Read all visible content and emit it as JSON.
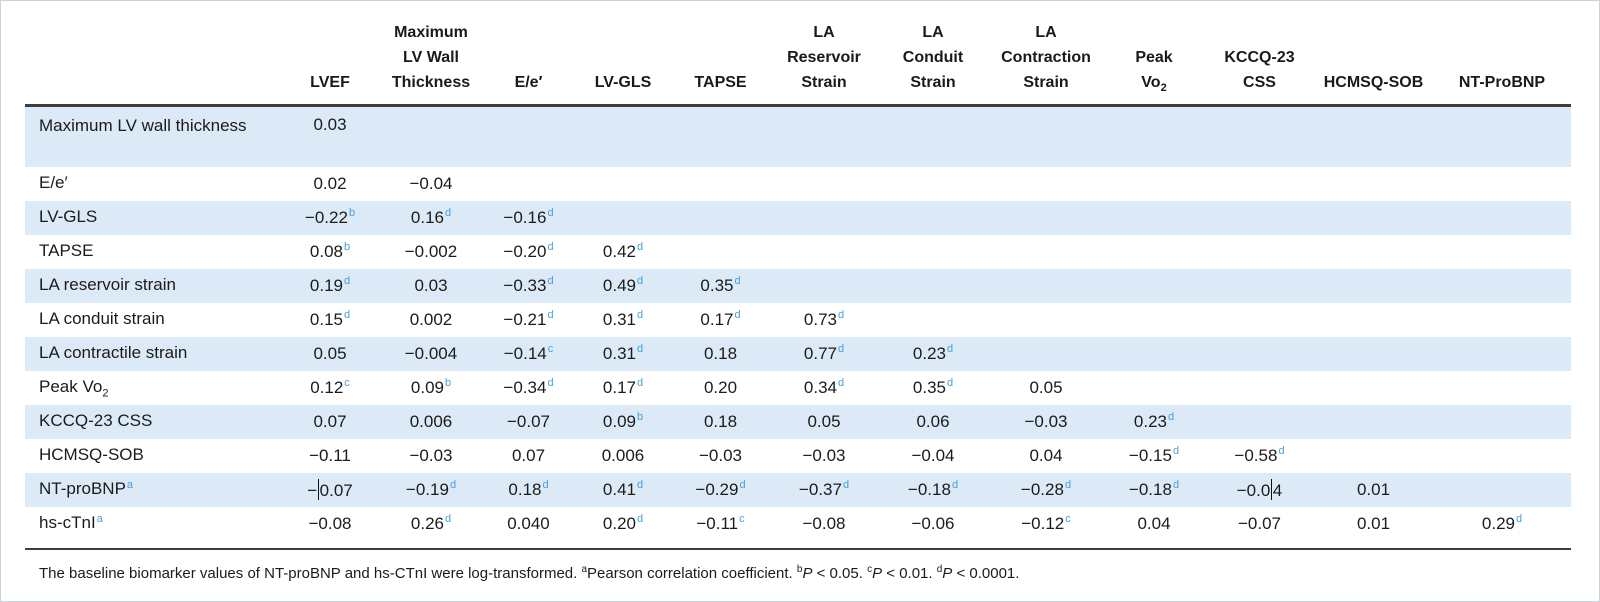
{
  "colors": {
    "row_stripe": "#dce9f7",
    "superscript_blue": "#4aa0da",
    "text": "#1b1b1b",
    "rule_dark": "#3d3d3d",
    "outer_border": "#cdd3dc"
  },
  "table": {
    "corner_label": "",
    "columns": [
      "LVEF",
      "Maximum\nLV Wall\nThickness",
      "E/e′",
      "LV-GLS",
      "TAPSE",
      "LA\nReservoir\nStrain",
      "LA\nConduit\nStrain",
      "LA\nContraction\nStrain",
      "Peak\nVo_2",
      "KCCQ-23\nCSS",
      "HCMSQ-SOB",
      "NT-ProBNP"
    ],
    "rows": [
      {
        "label": "Maximum LV wall thickness",
        "values": [
          "0.03",
          "",
          "",
          "",
          "",
          "",
          "",
          "",
          "",
          "",
          "",
          ""
        ]
      },
      {
        "label": "E/e′",
        "values": [
          "0.02",
          "−0.04",
          "",
          "",
          "",
          "",
          "",
          "",
          "",
          "",
          "",
          ""
        ]
      },
      {
        "label": "LV-GLS",
        "values": [
          "−0.22^b",
          "0.16^d",
          "−0.16^d",
          "",
          "",
          "",
          "",
          "",
          "",
          "",
          "",
          ""
        ]
      },
      {
        "label": "TAPSE",
        "values": [
          "0.08^b",
          "−0.002",
          "−0.20^d",
          "0.42^d",
          "",
          "",
          "",
          "",
          "",
          "",
          "",
          ""
        ]
      },
      {
        "label": "LA reservoir strain",
        "values": [
          "0.19^d",
          "0.03",
          "−0.33^d",
          "0.49^d",
          "0.35^d",
          "",
          "",
          "",
          "",
          "",
          "",
          ""
        ]
      },
      {
        "label": "LA conduit strain",
        "values": [
          "0.15^d",
          "0.002",
          "−0.21^d",
          "0.31^d",
          "0.17^d",
          "0.73^d",
          "",
          "",
          "",
          "",
          "",
          ""
        ]
      },
      {
        "label": "LA contractile strain",
        "values": [
          "0.05",
          "−0.004",
          "−0.14^c",
          "0.31^d",
          "0.18",
          "0.77^d",
          "0.23^d",
          "",
          "",
          "",
          "",
          ""
        ]
      },
      {
        "label": "Peak Vo_2",
        "values": [
          "0.12^c",
          "0.09^b",
          "−0.34^d",
          "0.17^d",
          "0.20",
          "0.34^d",
          "0.35^d",
          "0.05",
          "",
          "",
          "",
          ""
        ]
      },
      {
        "label": "KCCQ-23 CSS",
        "values": [
          "0.07",
          "0.006",
          "−0.07",
          "0.09^b",
          "0.18",
          "0.05",
          "0.06",
          "−0.03",
          "0.23^d",
          "",
          "",
          ""
        ]
      },
      {
        "label": "HCMSQ-SOB",
        "values": [
          "−0.11",
          "−0.03",
          "0.07",
          "0.006",
          "−0.03",
          "−0.03",
          "−0.04",
          "0.04",
          "−0.15^d",
          "−0.58^d",
          "",
          ""
        ]
      },
      {
        "label": "NT-proBNP^a",
        "values": [
          "−|0.07",
          "−0.19^d",
          "0.18^d",
          "0.41^d",
          "−0.29^d",
          "−0.37^d",
          "−0.18^d",
          "−0.28^d",
          "−0.18^d",
          "−0.0|4",
          "0.01",
          ""
        ]
      },
      {
        "label": "hs-cTnI^a",
        "values": [
          "−0.08",
          "0.26^d",
          "0.040",
          "0.20^d",
          "−0.11^c",
          "−0.08",
          "−0.06",
          "−0.12^c",
          "0.04",
          "−0.07",
          "0.01",
          "0.29^d"
        ]
      }
    ]
  },
  "footnote": "The baseline biomarker values of NT-proBNP and hs-CTnI were log-transformed. ^aPearson correlation coefficient. ^b*P* < 0.05. ^c*P* < 0.01. ^d*P* < 0.0001."
}
